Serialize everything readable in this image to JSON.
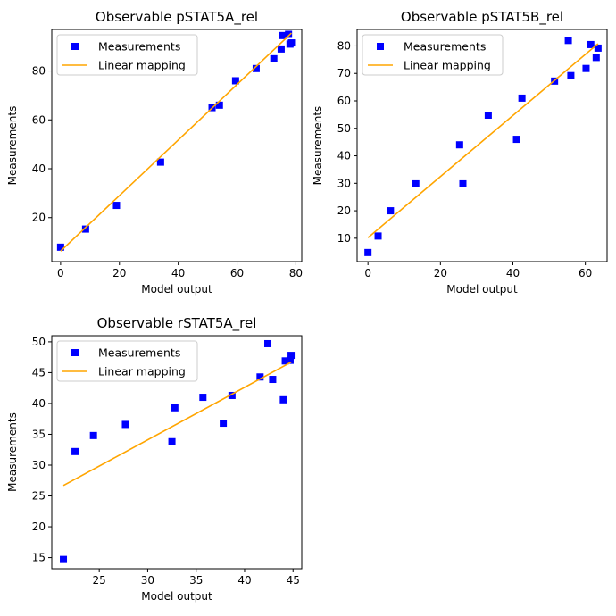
{
  "chart_data": [
    {
      "type": "scatter",
      "title": "Observable pSTAT5A_rel",
      "xlabel": "Model output",
      "ylabel": "Measurements",
      "xlim": [
        -3,
        82
      ],
      "ylim": [
        2,
        97
      ],
      "xticks": [
        0,
        20,
        40,
        60,
        80
      ],
      "yticks": [
        20,
        40,
        60,
        80
      ],
      "grid": false,
      "legend": "top-left",
      "series": [
        {
          "name": "Measurements",
          "color": "#0000ff",
          "marker": "square",
          "points": [
            [
              0,
              7.9
            ],
            [
              8.5,
              15.3
            ],
            [
              19,
              25
            ],
            [
              34,
              42.7
            ],
            [
              51.5,
              65
            ],
            [
              54,
              66
            ],
            [
              59.5,
              76
            ],
            [
              66.5,
              81
            ],
            [
              72.5,
              85
            ],
            [
              75,
              89
            ],
            [
              75.5,
              94.5
            ],
            [
              77.5,
              95
            ],
            [
              78,
              91
            ],
            [
              78.5,
              91.5
            ]
          ]
        },
        {
          "name": "Linear mapping",
          "color": "#ffa500",
          "type": "line",
          "points": [
            [
              0,
              6.3
            ],
            [
              78.5,
              95.5
            ]
          ]
        }
      ]
    },
    {
      "type": "scatter",
      "title": "Observable pSTAT5B_rel",
      "xlabel": "Model output",
      "ylabel": "Measurements",
      "xlim": [
        -3,
        66
      ],
      "ylim": [
        1.5,
        86
      ],
      "xticks": [
        0,
        20,
        40,
        60
      ],
      "yticks": [
        10,
        20,
        30,
        40,
        50,
        60,
        70,
        80
      ],
      "grid": false,
      "legend": "top-left",
      "series": [
        {
          "name": "Measurements",
          "color": "#0000ff",
          "marker": "square",
          "points": [
            [
              0,
              4.8
            ],
            [
              2.8,
              10.8
            ],
            [
              6.2,
              20
            ],
            [
              13.2,
              29.8
            ],
            [
              25.3,
              44
            ],
            [
              26.2,
              29.8
            ],
            [
              33.2,
              54.8
            ],
            [
              41,
              46
            ],
            [
              42.5,
              61
            ],
            [
              51.5,
              67.2
            ],
            [
              55.3,
              82
            ],
            [
              56,
              69.2
            ],
            [
              60.2,
              71.8
            ],
            [
              61.5,
              80.5
            ],
            [
              63,
              75.8
            ],
            [
              63.5,
              79.2
            ]
          ]
        },
        {
          "name": "Linear mapping",
          "color": "#ffa500",
          "type": "line",
          "points": [
            [
              0,
              10.2
            ],
            [
              63.5,
              80.8
            ]
          ]
        }
      ]
    },
    {
      "type": "scatter",
      "title": "Observable rSTAT5A_rel",
      "xlabel": "Model output",
      "ylabel": "Measurements",
      "xlim": [
        20.1,
        45.9
      ],
      "ylim": [
        13.2,
        51
      ],
      "xticks": [
        25,
        30,
        35,
        40,
        45
      ],
      "yticks": [
        15,
        20,
        25,
        30,
        35,
        40,
        45,
        50
      ],
      "grid": false,
      "legend": "top-left",
      "series": [
        {
          "name": "Measurements",
          "color": "#0000ff",
          "marker": "square",
          "points": [
            [
              21.3,
              14.7
            ],
            [
              22.5,
              32.2
            ],
            [
              24.4,
              34.8
            ],
            [
              27.7,
              36.6
            ],
            [
              32.5,
              33.8
            ],
            [
              32.8,
              39.3
            ],
            [
              35.7,
              41
            ],
            [
              37.8,
              36.8
            ],
            [
              38.7,
              41.3
            ],
            [
              41.6,
              44.3
            ],
            [
              42.4,
              49.7
            ],
            [
              42.9,
              43.9
            ],
            [
              44,
              40.6
            ],
            [
              44.2,
              46.9
            ],
            [
              44.7,
              47
            ],
            [
              44.8,
              47.8
            ]
          ]
        },
        {
          "name": "Linear mapping",
          "color": "#ffa500",
          "type": "line",
          "points": [
            [
              21.3,
              26.7
            ],
            [
              44.8,
              46.7
            ]
          ]
        }
      ]
    }
  ]
}
